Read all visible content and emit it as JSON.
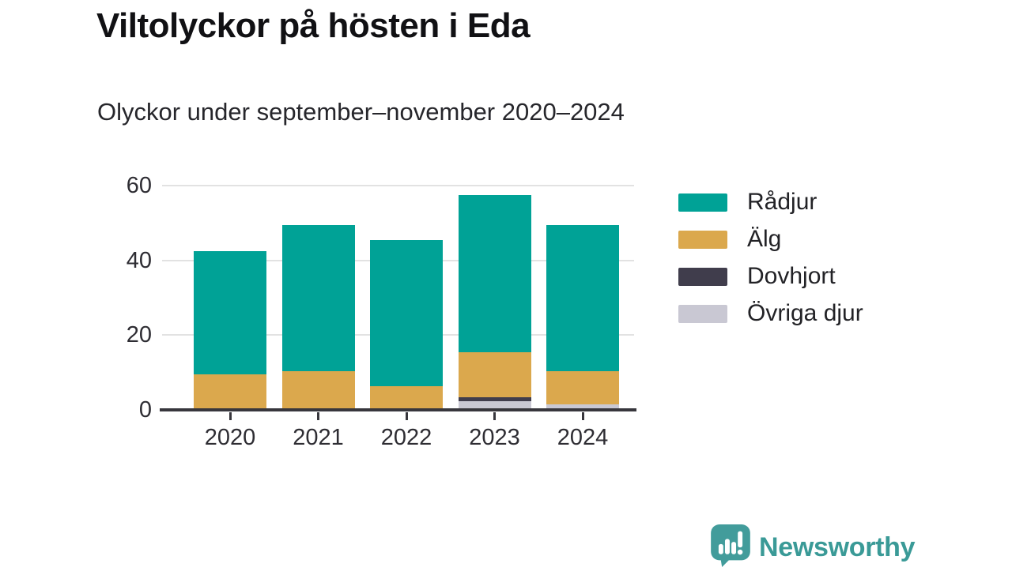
{
  "title": "Viltolyckor på hösten i Eda",
  "subtitle": "Olyckor under september–november 2020–2024",
  "chart_data": {
    "type": "bar",
    "stacked": true,
    "title": "Viltolyckor på hösten i Eda",
    "subtitle": "Olyckor under september–november 2020–2024",
    "categories": [
      "2020",
      "2021",
      "2022",
      "2023",
      "2024"
    ],
    "series": [
      {
        "name": "Rådjur",
        "color": "#00a296",
        "values": [
          33,
          39,
          39,
          42,
          39
        ]
      },
      {
        "name": "Älg",
        "color": "#dba84d",
        "values": [
          9,
          10,
          6,
          12,
          9
        ]
      },
      {
        "name": "Dovhjort",
        "color": "#403d4c",
        "values": [
          0,
          0,
          0,
          1,
          0
        ]
      },
      {
        "name": "Övriga djur",
        "color": "#c9c8d3",
        "values": [
          0,
          0,
          0,
          2,
          1
        ]
      }
    ],
    "totals": [
      42,
      49,
      45,
      57,
      49
    ],
    "stack_order_bottom_to_top": [
      "Övriga djur",
      "Dovhjort",
      "Älg",
      "Rådjur"
    ],
    "ylim": [
      0,
      60
    ],
    "yticks": [
      0,
      20,
      40,
      60
    ],
    "grid": true,
    "legend_position": "right",
    "xlabel": "",
    "ylabel": ""
  },
  "colors": {
    "axis": "#37363c",
    "grid": "#e2e2e2",
    "tick_text": "#2e2d33",
    "brand_teal": "#3a9a97"
  },
  "footer": {
    "brand": "Newsworthy",
    "logo_icon": "newsworthy-speech-bubble-chart-icon"
  }
}
